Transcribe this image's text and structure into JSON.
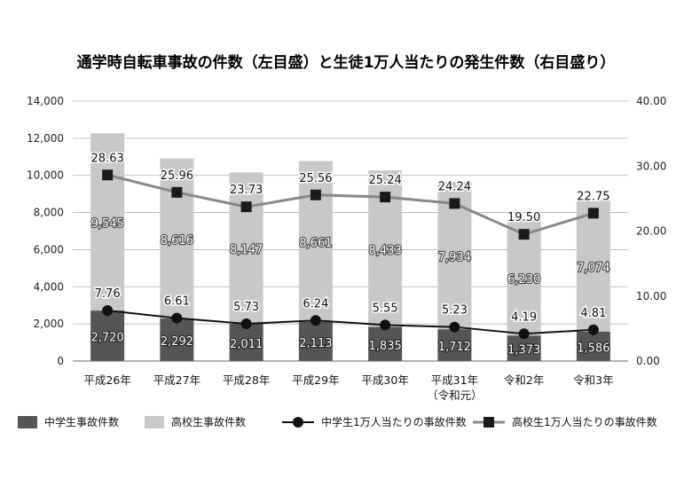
{
  "chart_data": {
    "type": "bar",
    "title": "通学時自転車事故の件数（左目盛）と生徒1万人当たりの発生件数（右目盛り）",
    "categories": [
      "平成26年",
      "平成27年",
      "平成28年",
      "平成29年",
      "平成30年",
      "平成31年",
      "令和2年",
      "令和3年"
    ],
    "category_sublabels": [
      "",
      "",
      "",
      "",
      "",
      "（令和元）",
      "",
      ""
    ],
    "stacked": true,
    "series": [
      {
        "name": "中学生事故件数",
        "kind": "bar",
        "axis": "left",
        "color": "#555555",
        "values": [
          2720,
          2292,
          2011,
          2113,
          1835,
          1712,
          1373,
          1586
        ],
        "labels": [
          "2,720",
          "2,292",
          "2,011",
          "2,113",
          "1,835",
          "1,712",
          "1,373",
          "1,586"
        ]
      },
      {
        "name": "高校生事故件数",
        "kind": "bar",
        "axis": "left",
        "color": "#c8c8c8",
        "values": [
          9545,
          8616,
          8147,
          8661,
          8433,
          7934,
          6230,
          7074
        ],
        "labels": [
          "9,545",
          "8,616",
          "8,147",
          "8,661",
          "8,433",
          "7,934",
          "6,230",
          "7,074"
        ]
      },
      {
        "name": "中学生1万人当たりの事故件数",
        "kind": "line",
        "axis": "right",
        "color": "#111111",
        "marker": "circle",
        "values": [
          7.76,
          6.61,
          5.73,
          6.24,
          5.55,
          5.23,
          4.19,
          4.81
        ],
        "labels": [
          "7.76",
          "6.61",
          "5.73",
          "6.24",
          "5.55",
          "5.23",
          "4.19",
          "4.81"
        ]
      },
      {
        "name": "高校生1万人当たりの事故件数",
        "kind": "line",
        "axis": "right",
        "color": "#888888",
        "marker": "square",
        "values": [
          28.63,
          25.96,
          23.73,
          25.56,
          25.24,
          24.24,
          19.5,
          22.75
        ],
        "labels": [
          "28.63",
          "25.96",
          "23.73",
          "25.56",
          "25.24",
          "24.24",
          "19.50",
          "22.75"
        ]
      }
    ],
    "ylim_left": [
      0,
      14000
    ],
    "ylim_right": [
      0,
      40
    ],
    "yticks_left": [
      "0",
      "2,000",
      "4,000",
      "6,000",
      "8,000",
      "10,000",
      "12,000",
      "14,000"
    ],
    "yticks_right": [
      "0.00",
      "10.00",
      "20.00",
      "30.00",
      "40.00"
    ],
    "grid": true,
    "legend_position": "bottom"
  }
}
